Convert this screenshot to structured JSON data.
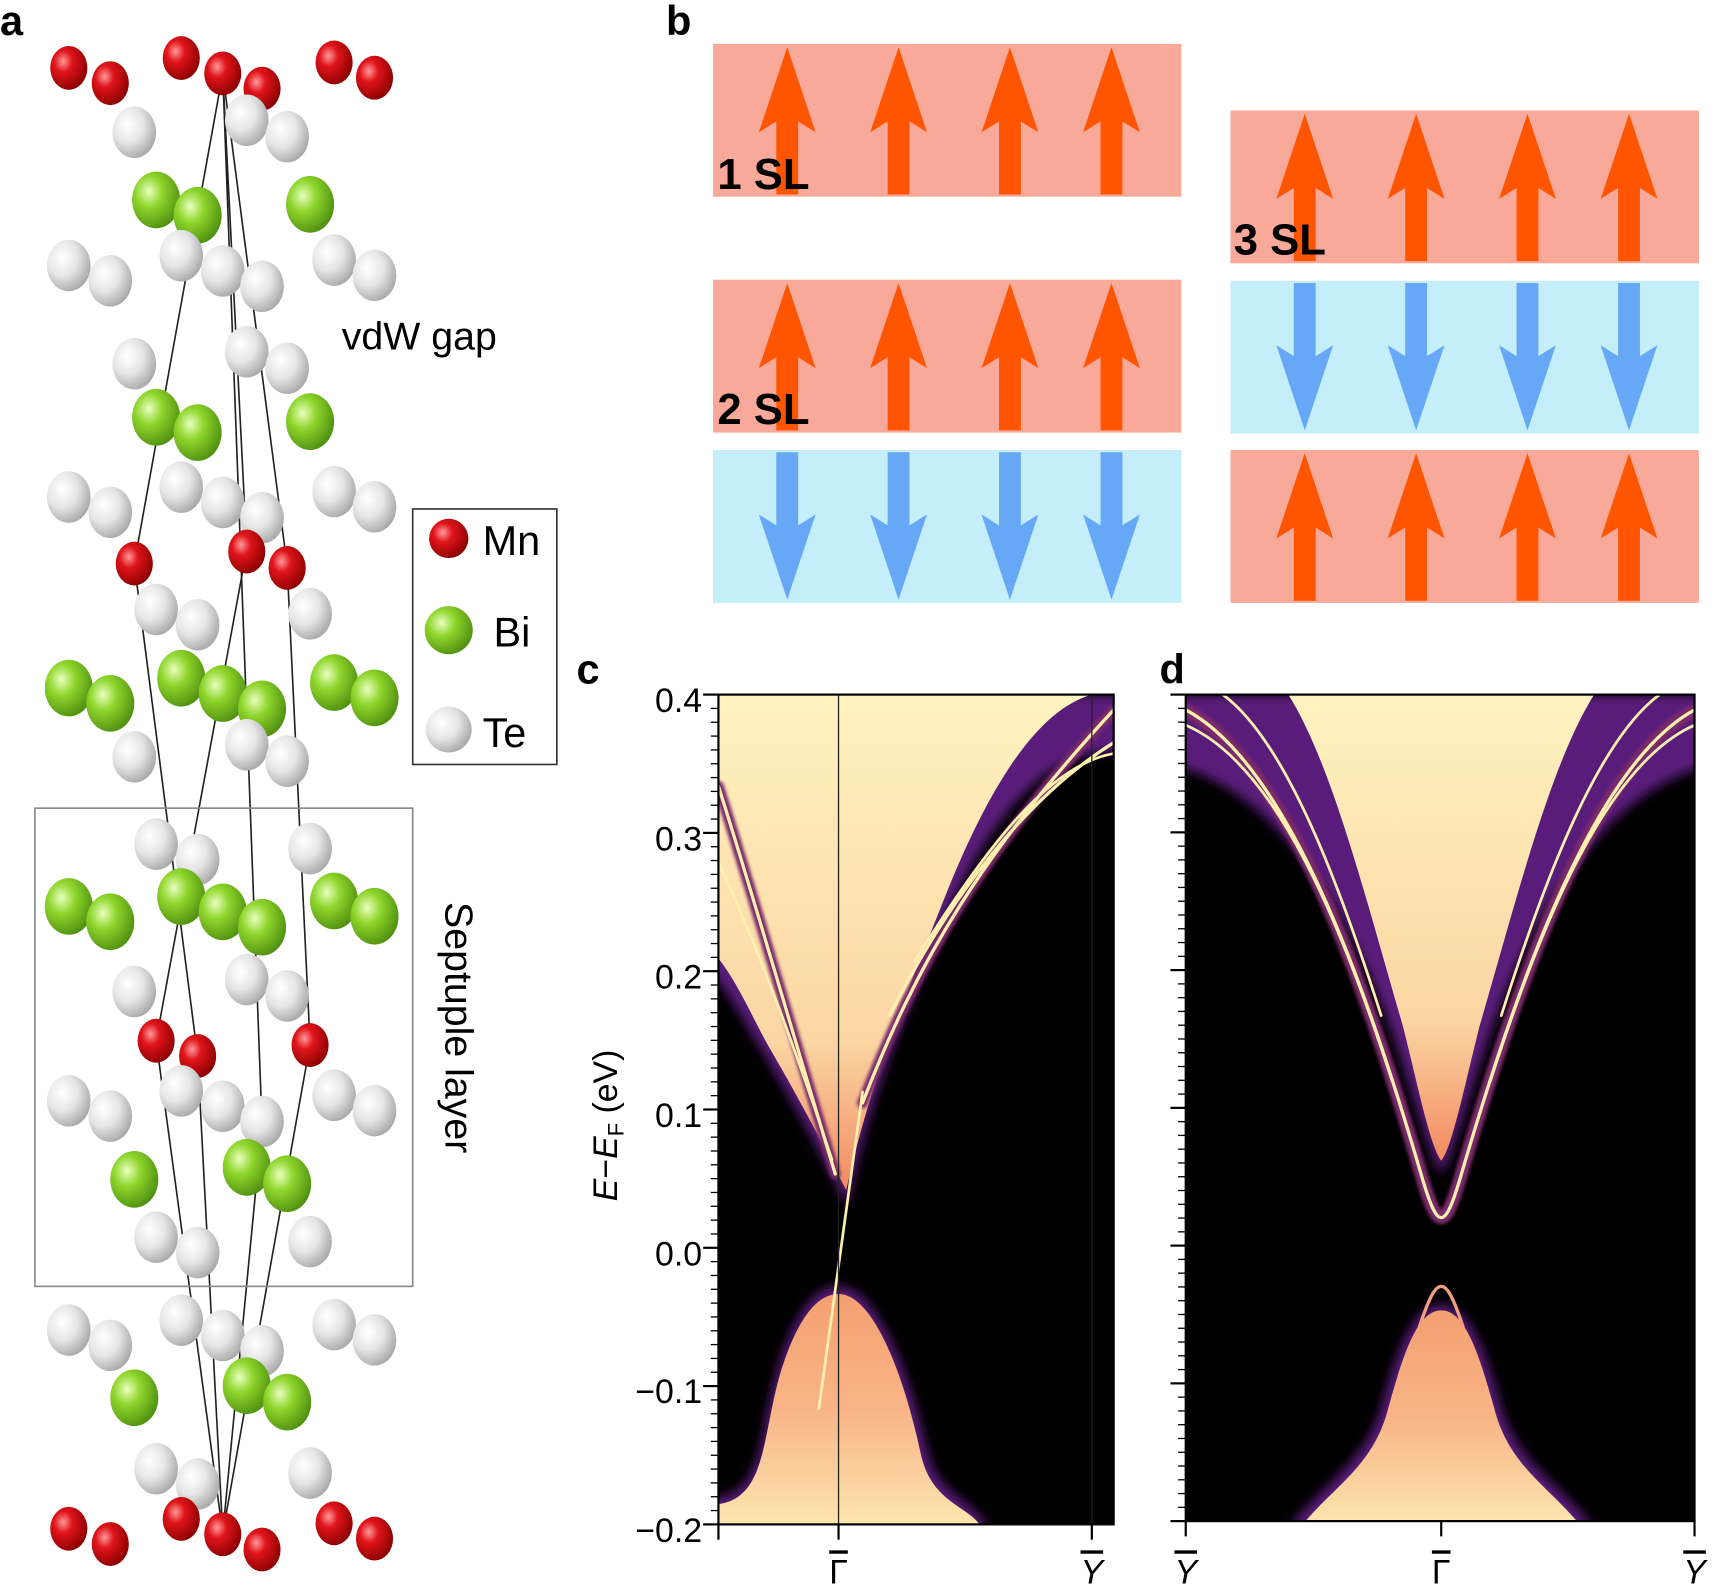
{
  "panels": {
    "a": "a",
    "b": "b",
    "c": "c",
    "d": "d"
  },
  "structure": {
    "legend": [
      {
        "label": "Mn",
        "color": "#e0151b"
      },
      {
        "label": "Bi",
        "color": "#8fd62c"
      },
      {
        "label": "Te",
        "color": "#e6e6e6"
      }
    ],
    "vdw_label": "vdW gap",
    "septuple_label": "Septuple layer"
  },
  "magnetic": {
    "up_color": "#ff5500",
    "down_color": "#66a8f5",
    "up_bg": "#f9a99a",
    "down_bg": "#c3eefa",
    "stacks": [
      {
        "label": "1 SL",
        "layers": [
          "up"
        ]
      },
      {
        "label": "2 SL",
        "layers": [
          "up",
          "down"
        ]
      },
      {
        "label": "3 SL",
        "layers": [
          "up",
          "down",
          "up"
        ]
      }
    ]
  },
  "chart_data": [
    {
      "type": "heatmap",
      "panel": "c",
      "title": "",
      "ylabel": {
        "e1": "E",
        "minus": "−",
        "e2": "E",
        "sub": "F",
        "unit": " (eV)"
      },
      "ylim": [
        -0.2,
        0.4
      ],
      "yticks": [
        "0.4",
        "0.3",
        "0.2",
        "0.1",
        "0.0",
        "−0.1",
        "−0.2"
      ],
      "xticks": [
        "Γ",
        "Y"
      ],
      "features": {
        "conduction_band_min_eV": 0.035,
        "valence_band_max_eV": -0.035,
        "gapless_surface_state": true
      }
    },
    {
      "type": "heatmap",
      "panel": "d",
      "title": "",
      "ylim": [
        -0.2,
        0.4
      ],
      "xticks": [
        "Y",
        "Γ",
        "Y"
      ],
      "features": {
        "conduction_band_min_eV": 0.065,
        "surface_state_upper_eV": 0.02,
        "surface_state_lower_eV": -0.03,
        "valence_band_max_eV": -0.045
      }
    }
  ]
}
